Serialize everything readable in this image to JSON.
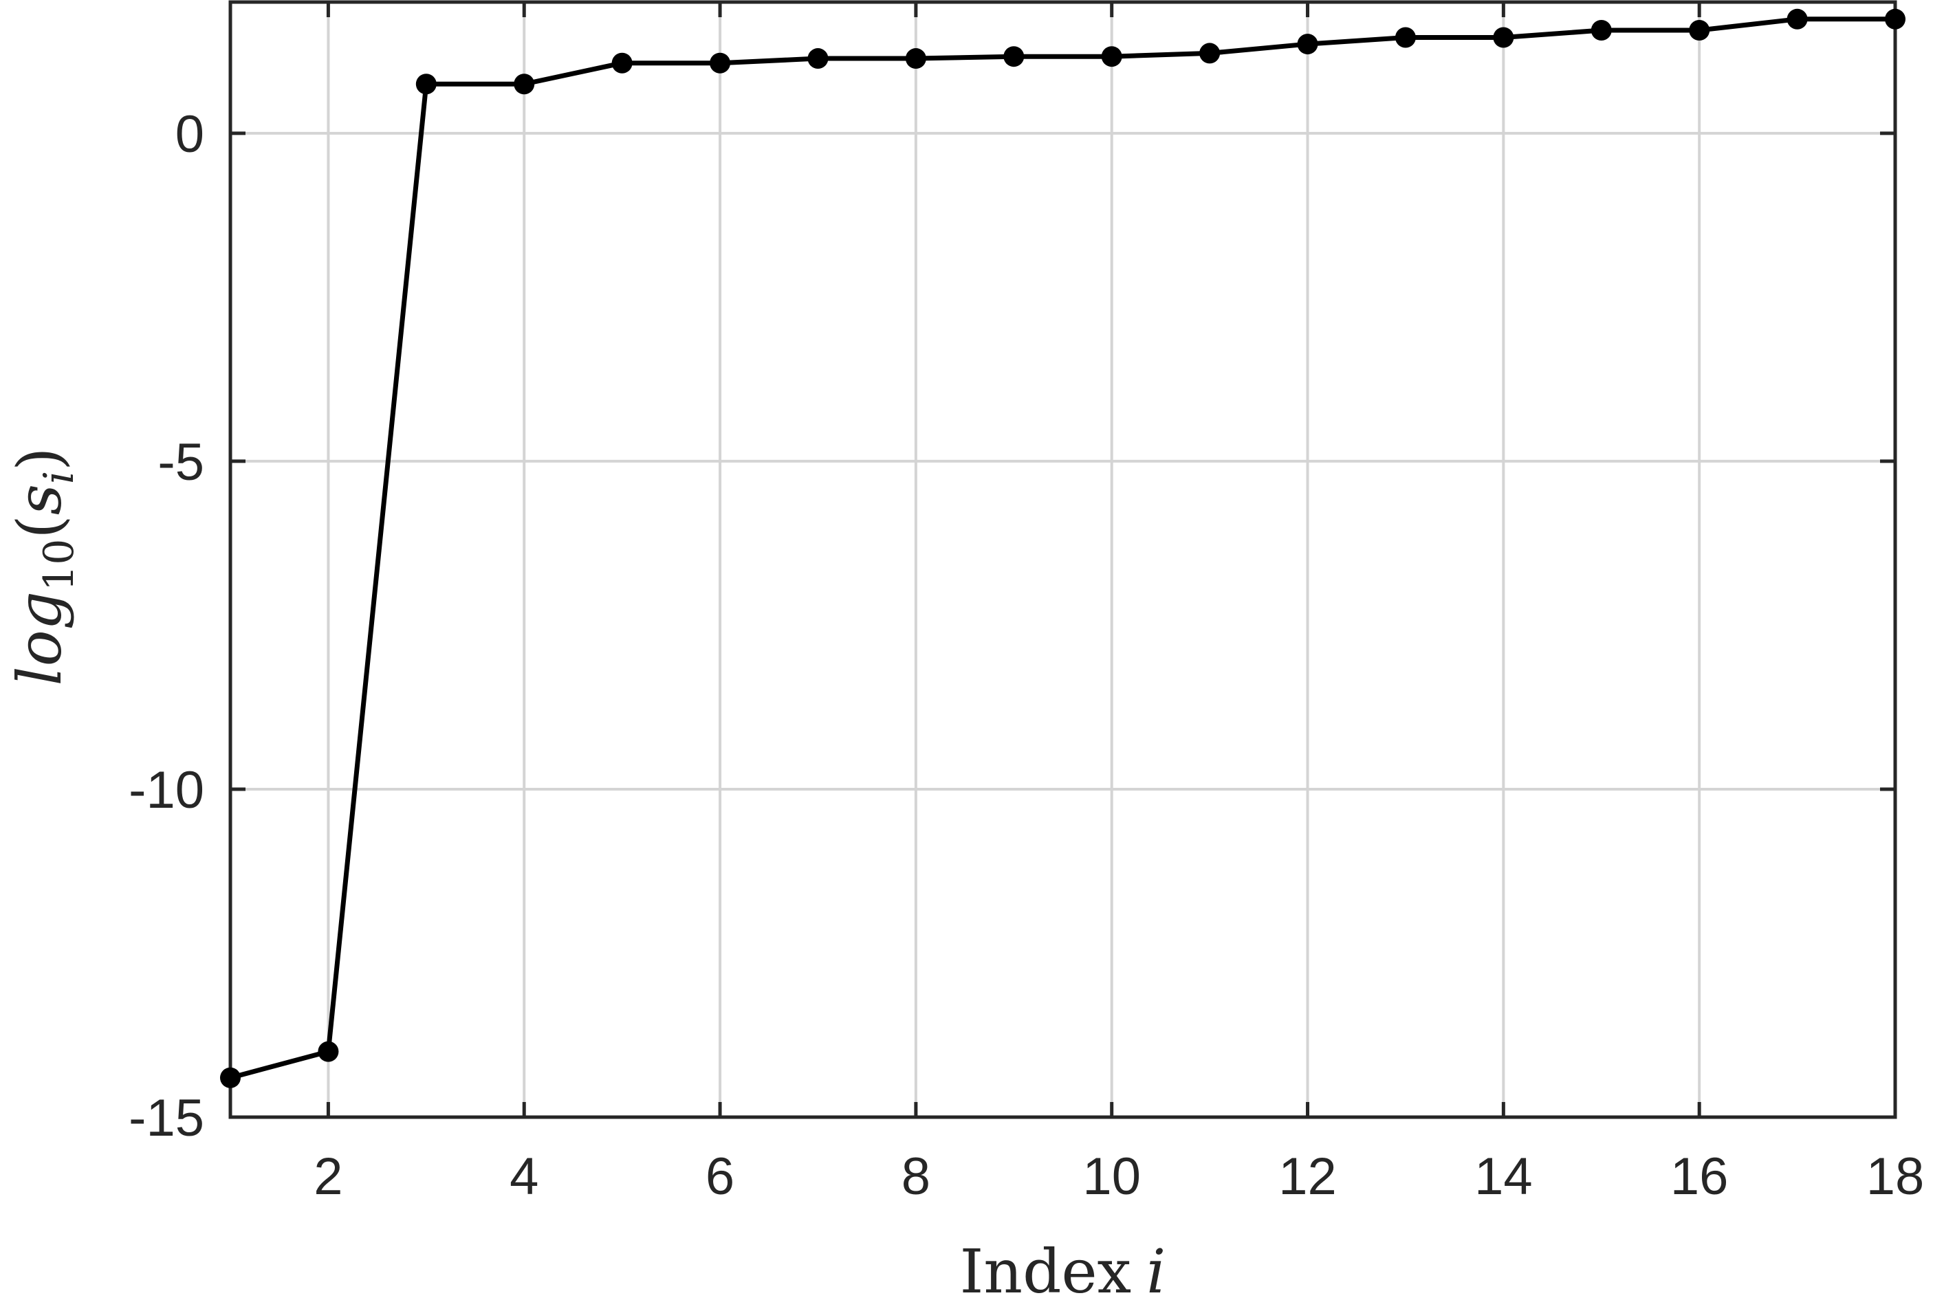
{
  "chart_data": {
    "type": "line",
    "xlabel": "Index",
    "xlabel_var": "i",
    "ylabel_main": "log",
    "ylabel_sub": "10",
    "ylabel_arg": "s",
    "ylabel_arg_sub": "i",
    "xlim": [
      1,
      18
    ],
    "ylim": [
      -15,
      2
    ],
    "xticks": [
      2,
      4,
      6,
      8,
      10,
      12,
      14,
      16,
      18
    ],
    "yticks": [
      0,
      -5,
      -10,
      -15
    ],
    "xtick_labels": [
      "2",
      "4",
      "6",
      "8",
      "10",
      "12",
      "14",
      "16",
      "18"
    ],
    "ytick_labels": [
      "0",
      "-5",
      "-10",
      "-15"
    ],
    "grid": true,
    "series": [
      {
        "color": "#000000",
        "marker": "circle",
        "x": [
          1,
          2,
          3,
          4,
          5,
          6,
          7,
          8,
          9,
          10,
          11,
          12,
          13,
          14,
          15,
          16,
          17,
          18
        ],
        "y": [
          -14.4,
          -14.0,
          0.75,
          0.75,
          1.07,
          1.07,
          1.14,
          1.14,
          1.17,
          1.17,
          1.22,
          1.36,
          1.46,
          1.46,
          1.57,
          1.57,
          1.74,
          1.74
        ]
      }
    ]
  }
}
